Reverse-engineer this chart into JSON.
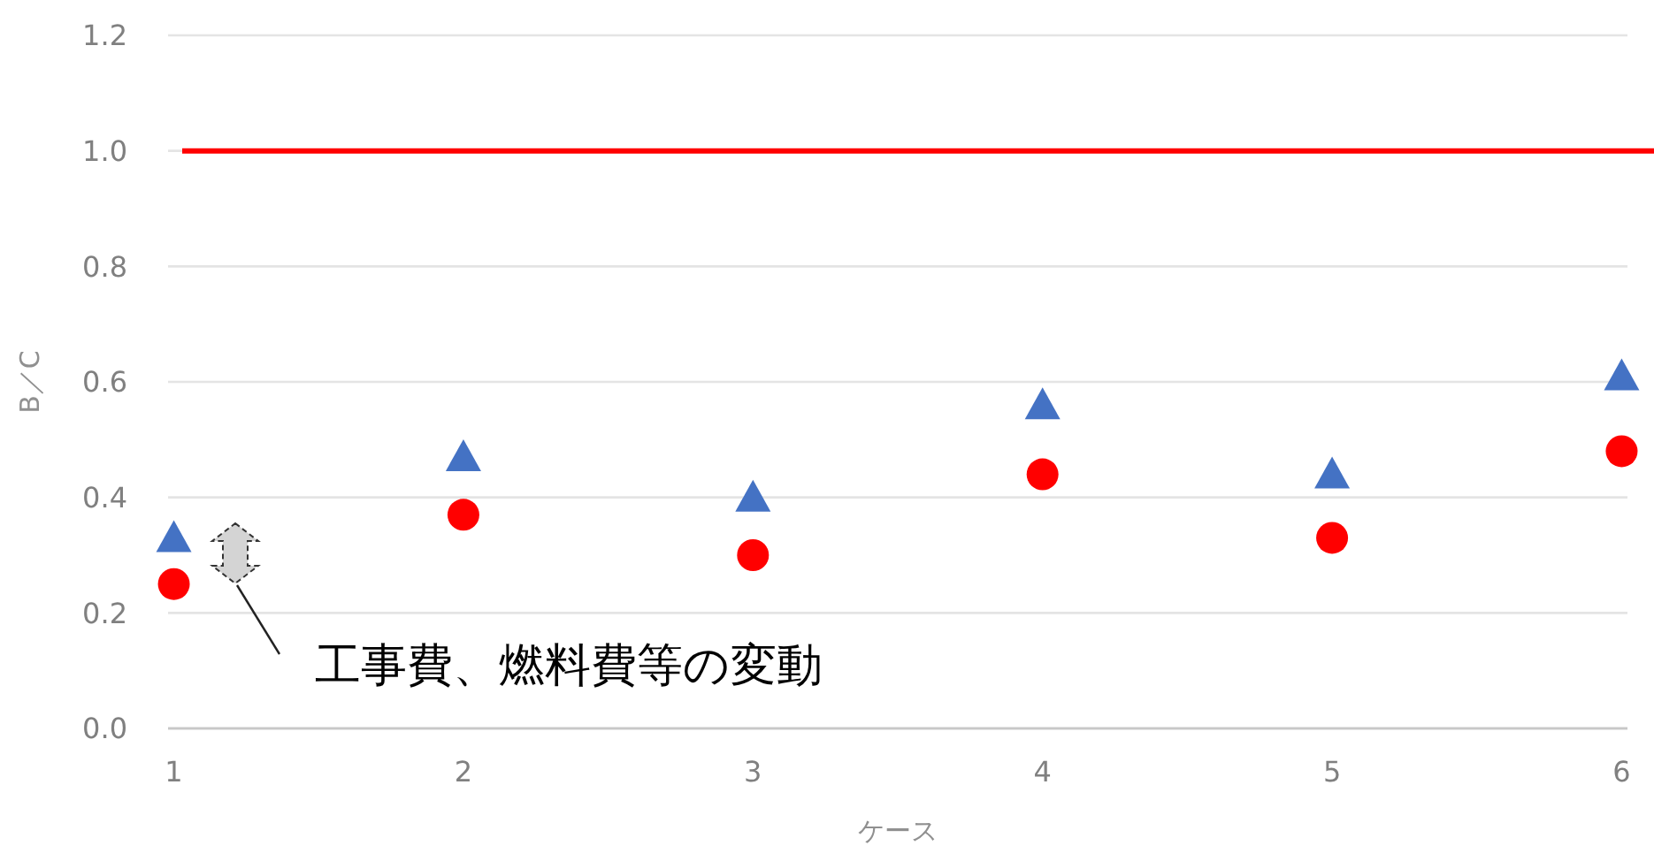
{
  "chart_data": {
    "type": "scatter",
    "xlabel": "ケース",
    "ylabel": "B／C",
    "x": [
      1,
      2,
      3,
      4,
      5,
      6
    ],
    "xlim": [
      0.98,
      6.02
    ],
    "xticks": [
      1,
      2,
      3,
      4,
      5,
      6
    ],
    "ylim": [
      0,
      1.2
    ],
    "yticks": [
      {
        "value": 0,
        "label": "0.0"
      },
      {
        "value": 0.2,
        "label": "0.2"
      },
      {
        "value": 0.4,
        "label": "0.4"
      },
      {
        "value": 0.6,
        "label": "0.6"
      },
      {
        "value": 0.8,
        "label": "0.8"
      },
      {
        "value": 1.0,
        "label": "1.0"
      },
      {
        "value": 1.2,
        "label": "1.2"
      }
    ],
    "grid": "y",
    "series": [
      {
        "color": "#4472c4",
        "marker": "triangle",
        "values": [
          0.33,
          0.47,
          0.4,
          0.56,
          0.44,
          0.61
        ]
      },
      {
        "color": "#ff0000",
        "marker": "circle",
        "values": [
          0.25,
          0.37,
          0.3,
          0.44,
          0.33,
          0.48
        ]
      }
    ],
    "ref_lines": [
      {
        "axis": "y",
        "value": 1.0,
        "color": "#ff0000",
        "line_style": "solid"
      }
    ],
    "annotations": [
      "工事費、燃料費等の変動"
    ]
  }
}
